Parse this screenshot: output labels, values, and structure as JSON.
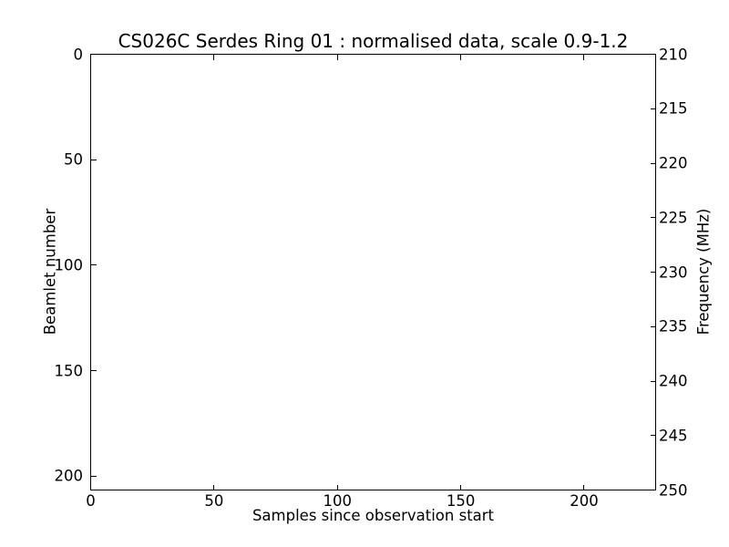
{
  "figure": {
    "background_color": "#ffffff",
    "axes_color": "#000000",
    "text_color": "#000000"
  },
  "chart_data": {
    "type": "heatmap",
    "title": "CS026C Serdes Ring 01 : normalised data, scale 0.9-1.2",
    "xlabel": "Samples since observation start",
    "ylabel_left": "Beamlet number",
    "ylabel_right": "Frequency (MHz)",
    "xlim": [
      0,
      229
    ],
    "ylim_left": [
      0,
      206.6
    ],
    "y_left_inverted": true,
    "ylim_right": [
      210,
      250
    ],
    "x_ticks": [
      0,
      50,
      100,
      150,
      200
    ],
    "y_ticks_left": [
      0,
      50,
      100,
      150,
      200
    ],
    "y_ticks_right": [
      210,
      215,
      220,
      225,
      230,
      235,
      240,
      245,
      250
    ],
    "colormap_scale": [
      0.9,
      1.2
    ],
    "values": [],
    "plot_area_blank": true,
    "grid": false,
    "legend": null
  }
}
